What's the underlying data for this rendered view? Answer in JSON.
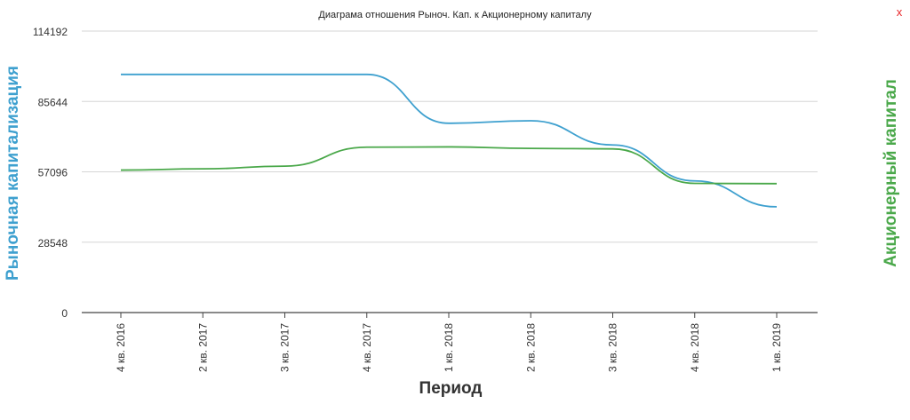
{
  "close_label": "x",
  "chart_data": {
    "type": "line",
    "title": "Диаграма отношения Рыноч. Кап. к Акционерному капиталу",
    "xlabel": "Период",
    "ylabel_left": "Рыночная капитализация",
    "ylabel_right": "Акционерный капитал",
    "categories": [
      "4 кв. 2016",
      "2 кв. 2017",
      "3 кв. 2017",
      "4 кв. 2017",
      "1 кв. 2018",
      "2 кв. 2018",
      "3 кв. 2018",
      "4 кв. 2018",
      "1 кв. 2019"
    ],
    "yticks": [
      "0",
      "28548",
      "57096",
      "85644",
      "114192"
    ],
    "ylim": [
      0,
      114192
    ],
    "grid": true,
    "series": [
      {
        "name": "Рыночная капитализация",
        "color": "#3ea0cf",
        "values": [
          96600,
          96600,
          96600,
          96600,
          76800,
          77800,
          68000,
          53400,
          42900
        ]
      },
      {
        "name": "Акционерный капитал",
        "color": "#4aa84a",
        "values": [
          57800,
          58300,
          59400,
          67100,
          67200,
          66600,
          66400,
          52400,
          52300
        ]
      }
    ]
  }
}
